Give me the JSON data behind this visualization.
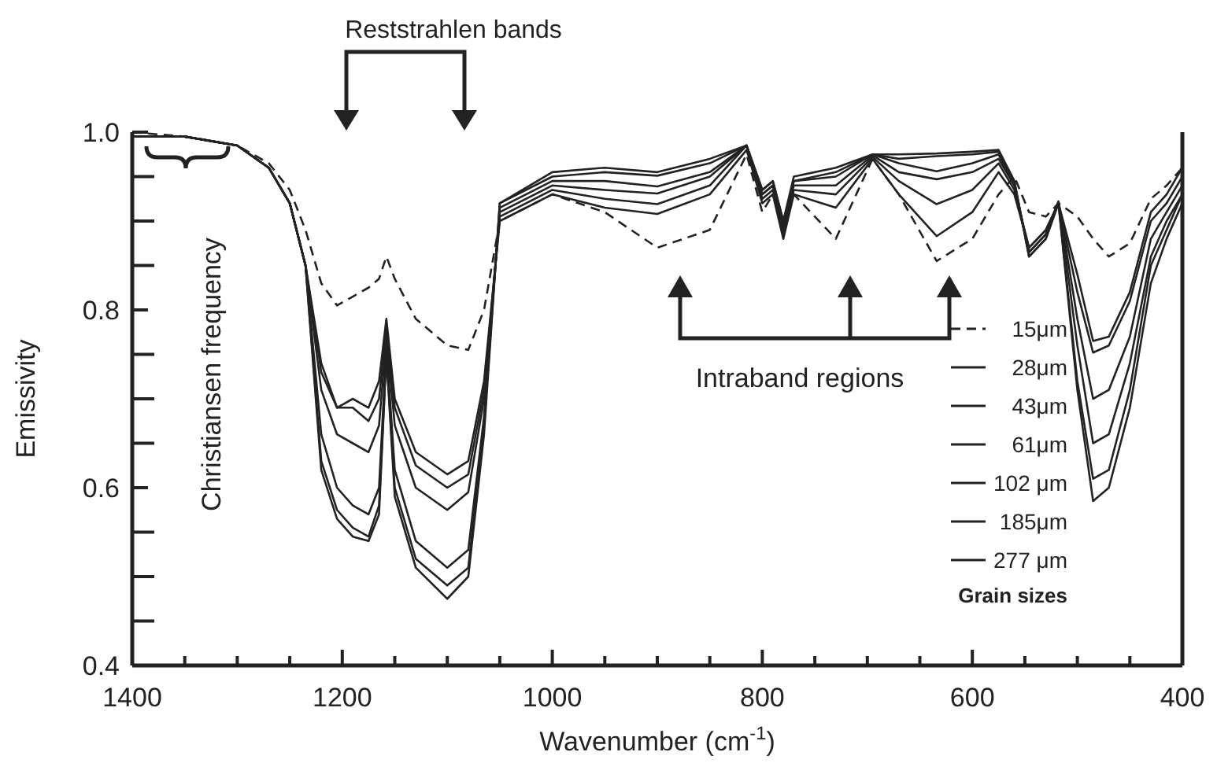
{
  "chart_data": {
    "type": "line",
    "xlabel": "Wavenumber (cm$^{-1}$)",
    "ylabel": "Emissivity",
    "xlim": [
      1400,
      400
    ],
    "ylim": [
      0.4,
      1.0
    ],
    "xticks": [
      1400,
      {
        "value": 1350,
        "label": null
      },
      {
        "value": 1300,
        "label": null
      },
      {
        "value": 1250,
        "label": null
      },
      1200,
      {
        "value": 1150,
        "label": null
      },
      {
        "value": 1100,
        "label": null
      },
      {
        "value": 1050,
        "label": null
      },
      1000,
      {
        "value": 950,
        "label": null
      },
      {
        "value": 900,
        "label": null
      },
      {
        "value": 850,
        "label": null
      },
      800,
      {
        "value": 750,
        "label": null
      },
      {
        "value": 700,
        "label": null
      },
      {
        "value": 650,
        "label": null
      },
      600,
      {
        "value": 550,
        "label": null
      },
      {
        "value": 500,
        "label": null
      },
      {
        "value": 450,
        "label": null
      },
      400
    ],
    "yticks": [
      {
        "value": 0.4,
        "label": "0.4"
      },
      {
        "value": 0.45,
        "label": null
      },
      {
        "value": 0.5,
        "label": null
      },
      {
        "value": 0.55,
        "label": null
      },
      {
        "value": 0.6,
        "label": "0.6"
      },
      {
        "value": 0.65,
        "label": null
      },
      {
        "value": 0.7,
        "label": null
      },
      {
        "value": 0.75,
        "label": null
      },
      {
        "value": 0.8,
        "label": "0.8"
      },
      {
        "value": 0.85,
        "label": null
      },
      {
        "value": 0.9,
        "label": null
      },
      {
        "value": 0.95,
        "label": null
      },
      {
        "value": 1.0,
        "label": "1.0"
      }
    ],
    "x": [
      1400,
      1350,
      1300,
      1270,
      1250,
      1235,
      1220,
      1205,
      1190,
      1175,
      1165,
      1158,
      1150,
      1130,
      1100,
      1080,
      1065,
      1050,
      1000,
      950,
      900,
      850,
      815,
      800,
      790,
      780,
      770,
      730,
      695,
      670,
      634,
      600,
      575,
      560,
      546,
      530,
      518,
      500,
      485,
      470,
      450,
      430,
      415,
      400
    ],
    "series": [
      {
        "name": "15μm",
        "color": "#222222",
        "line_style": "dashed",
        "values": [
          1.0,
          0.995,
          0.985,
          0.965,
          0.935,
          0.89,
          0.83,
          0.805,
          0.815,
          0.825,
          0.835,
          0.86,
          0.835,
          0.79,
          0.76,
          0.755,
          0.8,
          0.9,
          0.93,
          0.91,
          0.87,
          0.89,
          0.975,
          0.91,
          0.93,
          0.895,
          0.93,
          0.88,
          0.97,
          0.93,
          0.855,
          0.88,
          0.93,
          0.95,
          0.91,
          0.905,
          0.92,
          0.905,
          0.88,
          0.86,
          0.875,
          0.925,
          0.94,
          0.96
        ]
      },
      {
        "name": "28μm",
        "color": "#222222",
        "values": [
          0.995,
          0.995,
          0.985,
          0.96,
          0.92,
          0.85,
          0.74,
          0.69,
          0.7,
          0.69,
          0.72,
          0.79,
          0.7,
          0.64,
          0.615,
          0.63,
          0.72,
          0.9,
          0.93,
          0.915,
          0.908,
          0.93,
          0.98,
          0.92,
          0.93,
          0.88,
          0.93,
          0.915,
          0.97,
          0.93,
          0.883,
          0.91,
          0.955,
          0.93,
          0.87,
          0.89,
          0.92,
          0.84,
          0.765,
          0.77,
          0.82,
          0.91,
          0.93,
          0.96
        ]
      },
      {
        "name": "43μm",
        "color": "#222222",
        "values": [
          0.995,
          0.995,
          0.985,
          0.96,
          0.92,
          0.85,
          0.73,
          0.69,
          0.69,
          0.675,
          0.7,
          0.78,
          0.69,
          0.625,
          0.6,
          0.615,
          0.71,
          0.905,
          0.935,
          0.925,
          0.919,
          0.94,
          0.985,
          0.925,
          0.935,
          0.885,
          0.935,
          0.93,
          0.972,
          0.945,
          0.919,
          0.935,
          0.965,
          0.935,
          0.87,
          0.89,
          0.92,
          0.82,
          0.752,
          0.76,
          0.81,
          0.9,
          0.92,
          0.95
        ]
      },
      {
        "name": "61μm",
        "color": "#222222",
        "values": [
          0.995,
          0.995,
          0.985,
          0.96,
          0.92,
          0.85,
          0.71,
          0.66,
          0.65,
          0.64,
          0.67,
          0.77,
          0.67,
          0.6,
          0.575,
          0.595,
          0.7,
          0.91,
          0.94,
          0.935,
          0.931,
          0.95,
          0.985,
          0.93,
          0.94,
          0.89,
          0.94,
          0.94,
          0.974,
          0.955,
          0.947,
          0.955,
          0.97,
          0.94,
          0.865,
          0.885,
          0.922,
          0.79,
          0.7,
          0.71,
          0.77,
          0.88,
          0.91,
          0.94
        ]
      },
      {
        "name": "102 μm",
        "color": "#222222",
        "values": [
          0.995,
          0.995,
          0.985,
          0.96,
          0.92,
          0.85,
          0.66,
          0.6,
          0.58,
          0.57,
          0.6,
          0.76,
          0.62,
          0.54,
          0.51,
          0.53,
          0.68,
          0.915,
          0.945,
          0.945,
          0.939,
          0.955,
          0.985,
          0.93,
          0.94,
          0.895,
          0.945,
          0.95,
          0.975,
          0.965,
          0.956,
          0.965,
          0.975,
          0.94,
          0.865,
          0.885,
          0.922,
          0.76,
          0.65,
          0.66,
          0.74,
          0.86,
          0.9,
          0.93
        ]
      },
      {
        "name": "185μm",
        "color": "#222222",
        "values": [
          0.995,
          0.995,
          0.985,
          0.96,
          0.92,
          0.85,
          0.63,
          0.575,
          0.555,
          0.545,
          0.58,
          0.75,
          0.6,
          0.52,
          0.49,
          0.51,
          0.67,
          0.92,
          0.95,
          0.955,
          0.951,
          0.965,
          0.985,
          0.935,
          0.945,
          0.9,
          0.945,
          0.955,
          0.975,
          0.97,
          0.973,
          0.975,
          0.978,
          0.945,
          0.86,
          0.88,
          0.92,
          0.72,
          0.61,
          0.62,
          0.71,
          0.85,
          0.89,
          0.93
        ]
      },
      {
        "name": "277 μm",
        "color": "#222222",
        "values": [
          0.995,
          0.995,
          0.985,
          0.96,
          0.92,
          0.85,
          0.62,
          0.565,
          0.545,
          0.54,
          0.57,
          0.75,
          0.59,
          0.51,
          0.475,
          0.5,
          0.66,
          0.92,
          0.955,
          0.96,
          0.955,
          0.97,
          0.985,
          0.935,
          0.945,
          0.9,
          0.95,
          0.96,
          0.975,
          0.975,
          0.976,
          0.978,
          0.98,
          0.945,
          0.86,
          0.88,
          0.92,
          0.71,
          0.585,
          0.6,
          0.69,
          0.83,
          0.88,
          0.92
        ]
      }
    ],
    "annotations": [
      "Reststrahlen bands",
      "Intraband regions",
      "Christiansen frequency",
      "Grain sizes"
    ],
    "legend": "right"
  }
}
